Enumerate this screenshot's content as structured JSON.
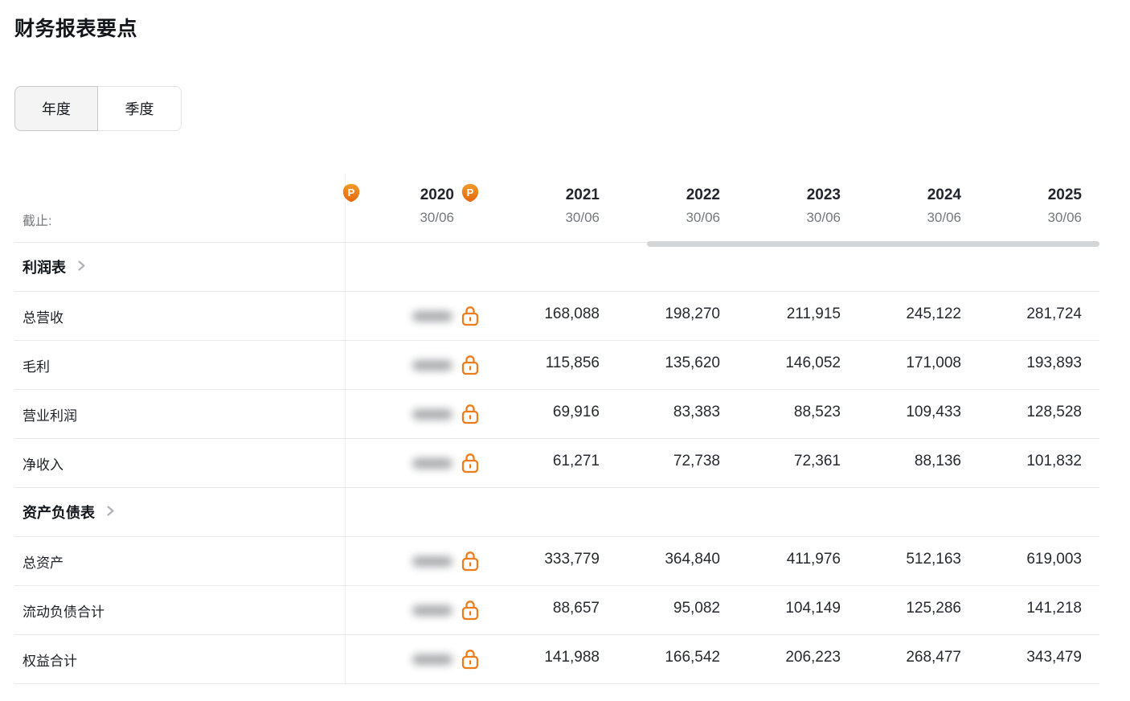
{
  "page": {
    "title": "财务报表要点"
  },
  "tabs": [
    {
      "label": "年度",
      "selected": true
    },
    {
      "label": "季度",
      "selected": false
    }
  ],
  "table": {
    "as_of_label": "截止:",
    "columns": [
      {
        "year": "",
        "date": "",
        "partial": true,
        "has_badge": true,
        "locked": true
      },
      {
        "year": "2020",
        "date": "30/06",
        "has_badge": true,
        "locked": true
      },
      {
        "year": "2021",
        "date": "30/06"
      },
      {
        "year": "2022",
        "date": "30/06"
      },
      {
        "year": "2023",
        "date": "30/06"
      },
      {
        "year": "2024",
        "date": "30/06"
      },
      {
        "year": "2025",
        "date": "30/06"
      }
    ],
    "sections": [
      {
        "label": "利润表",
        "rows": [
          {
            "label": "总营收",
            "values": [
              "168,088",
              "198,270",
              "211,915",
              "245,122",
              "281,724"
            ]
          },
          {
            "label": "毛利",
            "values": [
              "115,856",
              "135,620",
              "146,052",
              "171,008",
              "193,893"
            ]
          },
          {
            "label": "营业利润",
            "values": [
              "69,916",
              "83,383",
              "88,523",
              "109,433",
              "128,528"
            ]
          },
          {
            "label": "净收入",
            "values": [
              "61,271",
              "72,738",
              "72,361",
              "88,136",
              "101,832"
            ]
          }
        ]
      },
      {
        "label": "资产负债表",
        "rows": [
          {
            "label": "总资产",
            "values": [
              "333,779",
              "364,840",
              "411,976",
              "512,163",
              "619,003"
            ]
          },
          {
            "label": "流动负债合计",
            "values": [
              "88,657",
              "95,082",
              "104,149",
              "125,286",
              "141,218"
            ]
          },
          {
            "label": "权益合计",
            "values": [
              "141,988",
              "166,542",
              "206,223",
              "268,477",
              "343,479"
            ]
          }
        ]
      }
    ]
  },
  "icons": {
    "lock": "lock-icon",
    "pro_badge": "pro-badge-icon",
    "chevron": "chevron-right-icon"
  },
  "colors": {
    "lock_orange": "#ED7D1C",
    "badge_orange_top": "#F49B2B",
    "badge_orange_bottom": "#E4660C",
    "scrollbar_thumb": "#D4D5D7"
  }
}
